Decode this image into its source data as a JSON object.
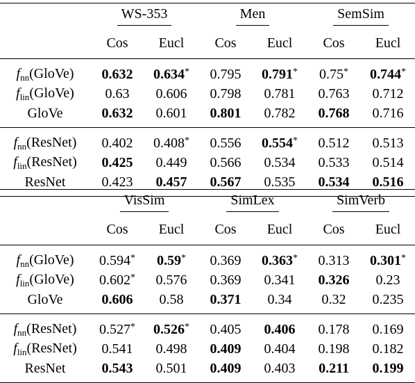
{
  "tables": [
    {
      "datasets": [
        "WS-353",
        "Men",
        "SemSim"
      ],
      "metrics": [
        "Cos",
        "Eucl",
        "Cos",
        "Eucl",
        "Cos",
        "Eucl"
      ],
      "groups": [
        [
          {
            "f": "f",
            "sub": "nn",
            "name": "(GloVe)",
            "cells": [
              [
                "0.632",
                true,
                false
              ],
              [
                "0.634",
                true,
                true
              ],
              [
                "0.795",
                false,
                false
              ],
              [
                "0.791",
                true,
                true
              ],
              [
                "0.75",
                false,
                true
              ],
              [
                "0.744",
                true,
                true
              ]
            ]
          },
          {
            "f": "f",
            "sub": "lin",
            "name": "(GloVe)",
            "cells": [
              [
                "0.63",
                false,
                false
              ],
              [
                "0.606",
                false,
                false
              ],
              [
                "0.798",
                false,
                false
              ],
              [
                "0.781",
                false,
                false
              ],
              [
                "0.763",
                false,
                false
              ],
              [
                "0.712",
                false,
                false
              ]
            ]
          },
          {
            "f": "",
            "sub": "",
            "name": "GloVe",
            "cells": [
              [
                "0.632",
                true,
                false
              ],
              [
                "0.601",
                false,
                false
              ],
              [
                "0.801",
                true,
                false
              ],
              [
                "0.782",
                false,
                false
              ],
              [
                "0.768",
                true,
                false
              ],
              [
                "0.716",
                false,
                false
              ]
            ]
          }
        ],
        [
          {
            "f": "f",
            "sub": "nn",
            "name": "(ResNet)",
            "cells": [
              [
                "0.402",
                false,
                false
              ],
              [
                "0.408",
                false,
                true
              ],
              [
                "0.556",
                false,
                false
              ],
              [
                "0.554",
                true,
                true
              ],
              [
                "0.512",
                false,
                false
              ],
              [
                "0.513",
                false,
                false
              ]
            ]
          },
          {
            "f": "f",
            "sub": "lin",
            "name": "(ResNet)",
            "cells": [
              [
                "0.425",
                true,
                false
              ],
              [
                "0.449",
                false,
                false
              ],
              [
                "0.566",
                false,
                false
              ],
              [
                "0.534",
                false,
                false
              ],
              [
                "0.533",
                false,
                false
              ],
              [
                "0.514",
                false,
                false
              ]
            ]
          },
          {
            "f": "",
            "sub": "",
            "name": "ResNet",
            "cells": [
              [
                "0.423",
                false,
                false
              ],
              [
                "0.457",
                true,
                false
              ],
              [
                "0.567",
                true,
                false
              ],
              [
                "0.535",
                false,
                false
              ],
              [
                "0.534",
                true,
                false
              ],
              [
                "0.516",
                true,
                false
              ]
            ]
          }
        ]
      ]
    },
    {
      "datasets": [
        "VisSim",
        "SimLex",
        "SimVerb"
      ],
      "metrics": [
        "Cos",
        "Eucl",
        "Cos",
        "Eucl",
        "Cos",
        "Eucl"
      ],
      "groups": [
        [
          {
            "f": "f",
            "sub": "nn",
            "name": "(GloVe)",
            "cells": [
              [
                "0.594",
                false,
                true
              ],
              [
                "0.59",
                true,
                true
              ],
              [
                "0.369",
                false,
                false
              ],
              [
                "0.363",
                true,
                true
              ],
              [
                "0.313",
                false,
                false
              ],
              [
                "0.301",
                true,
                true
              ]
            ]
          },
          {
            "f": "f",
            "sub": "lin",
            "name": "(GloVe)",
            "cells": [
              [
                "0.602",
                false,
                true
              ],
              [
                "0.576",
                false,
                false
              ],
              [
                "0.369",
                false,
                false
              ],
              [
                "0.341",
                false,
                false
              ],
              [
                "0.326",
                true,
                false
              ],
              [
                "0.23",
                false,
                false
              ]
            ]
          },
          {
            "f": "",
            "sub": "",
            "name": "GloVe",
            "cells": [
              [
                "0.606",
                true,
                false
              ],
              [
                "0.58",
                false,
                false
              ],
              [
                "0.371",
                true,
                false
              ],
              [
                "0.34",
                false,
                false
              ],
              [
                "0.32",
                false,
                false
              ],
              [
                "0.235",
                false,
                false
              ]
            ]
          }
        ],
        [
          {
            "f": "f",
            "sub": "nn",
            "name": "(ResNet)",
            "cells": [
              [
                "0.527",
                false,
                true
              ],
              [
                "0.526",
                true,
                true
              ],
              [
                "0.405",
                false,
                false
              ],
              [
                "0.406",
                true,
                false
              ],
              [
                "0.178",
                false,
                false
              ],
              [
                "0.169",
                false,
                false
              ]
            ]
          },
          {
            "f": "f",
            "sub": "lin",
            "name": "(ResNet)",
            "cells": [
              [
                "0.541",
                false,
                false
              ],
              [
                "0.498",
                false,
                false
              ],
              [
                "0.409",
                true,
                false
              ],
              [
                "0.404",
                false,
                false
              ],
              [
                "0.198",
                false,
                false
              ],
              [
                "0.182",
                false,
                false
              ]
            ]
          },
          {
            "f": "",
            "sub": "",
            "name": "ResNet",
            "cells": [
              [
                "0.543",
                true,
                false
              ],
              [
                "0.501",
                false,
                false
              ],
              [
                "0.409",
                true,
                false
              ],
              [
                "0.403",
                false,
                false
              ],
              [
                "0.211",
                true,
                false
              ],
              [
                "0.199",
                true,
                false
              ]
            ]
          }
        ]
      ]
    }
  ],
  "star_symbol": "*"
}
